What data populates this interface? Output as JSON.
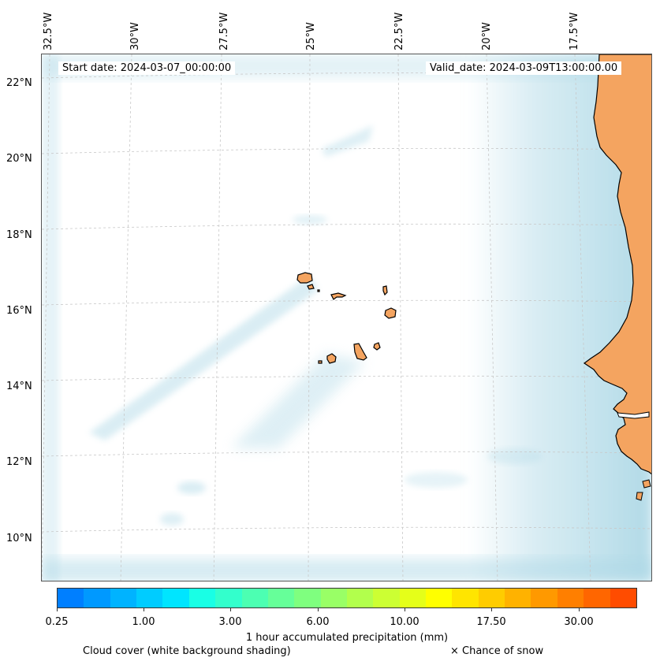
{
  "map": {
    "start_date": "Start date: 2024-03-07_00:00:00",
    "valid_date": "Valid_date: 2024-03-09T13:00:00.00",
    "lon_labels": [
      "32.5°W",
      "30°W",
      "27.5°W",
      "25°W",
      "22.5°W",
      "20°W",
      "17.5°W"
    ],
    "lat_labels": [
      "22°N",
      "20°N",
      "18°N",
      "16°N",
      "14°N",
      "12°N",
      "10°N"
    ]
  },
  "colorbar": {
    "colors": [
      "#007fff",
      "#0099ff",
      "#00b3ff",
      "#00ccff",
      "#00e5ff",
      "#19ffe5",
      "#33ffcc",
      "#4cffb2",
      "#66ff99",
      "#7fff7f",
      "#99ff66",
      "#b2ff4c",
      "#ccff33",
      "#e5ff19",
      "#ffff00",
      "#ffe500",
      "#ffcc00",
      "#ffb200",
      "#ff9900",
      "#ff7f00",
      "#ff6600",
      "#ff4c00"
    ],
    "tick_labels": [
      "0.25",
      "1.00",
      "3.00",
      "6.00",
      "10.00",
      "17.50",
      "30.00"
    ],
    "title": "1 hour accumulated precipitation (mm)"
  },
  "legend": {
    "cloud_note": "Cloud cover (white background shading)",
    "snow_note": "× Chance of snow"
  },
  "colors": {
    "land": "#f4a460",
    "cloud": "#add8e6",
    "grid": "#c8c8c8"
  }
}
